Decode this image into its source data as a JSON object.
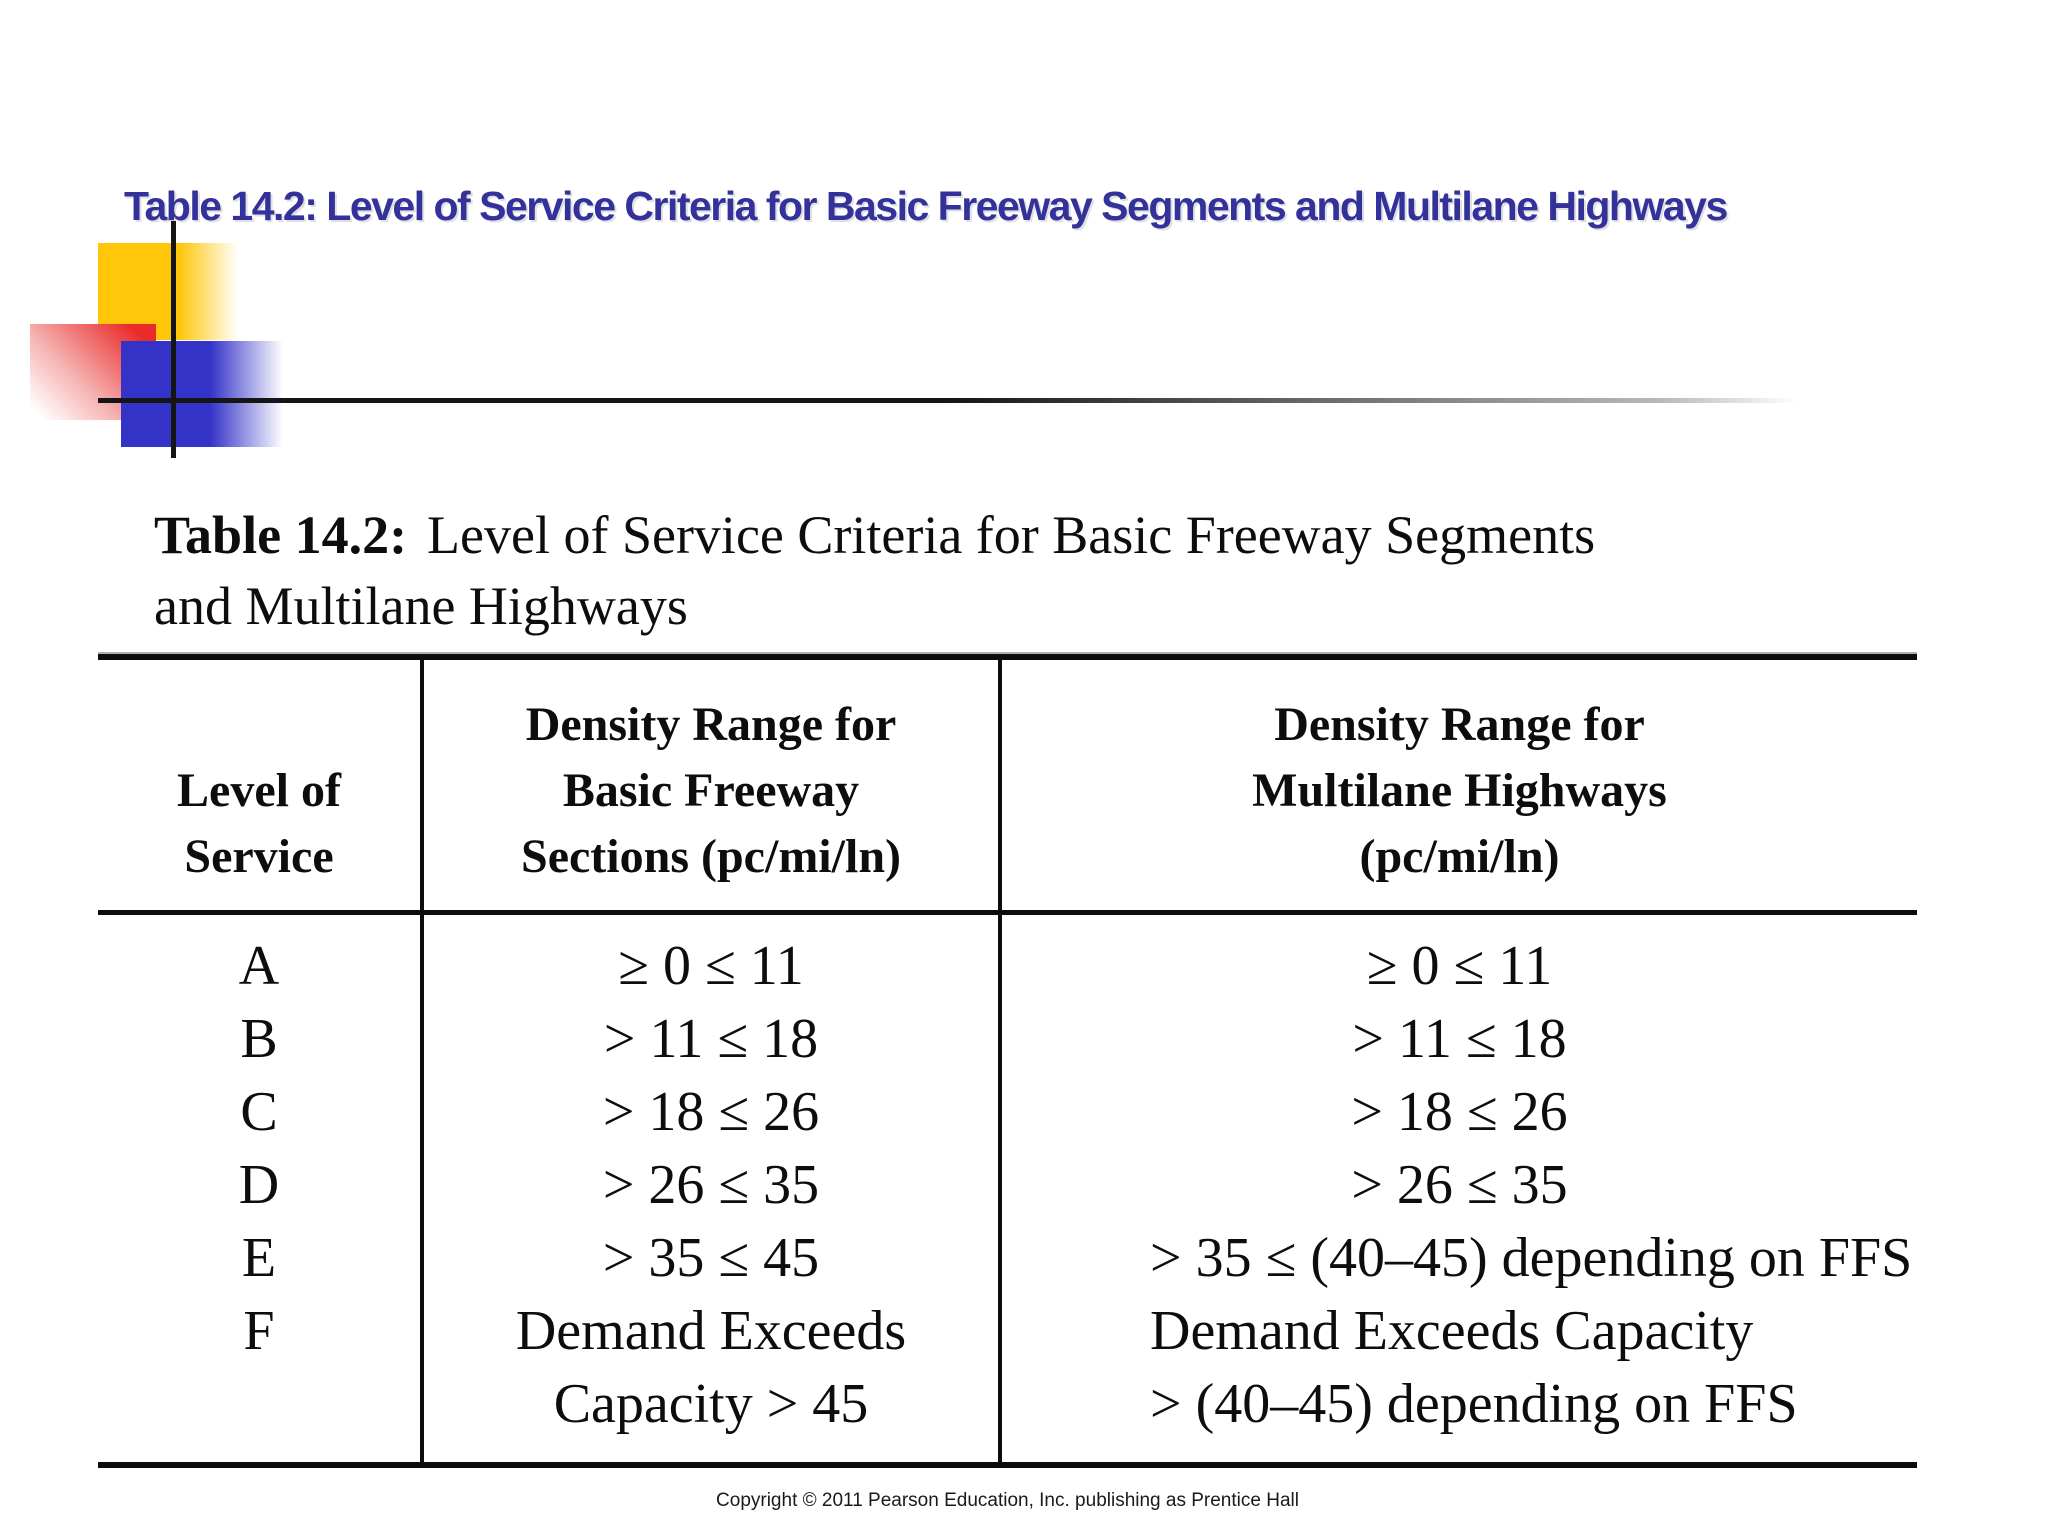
{
  "slide": {
    "title": "Table 14.2: Level of Service Criteria for Basic Freeway Segments and Multilane Highways",
    "title_color": "#32329a"
  },
  "decoration": {
    "yellow_square_color": "#ffc60a",
    "red_square_color": "#eb2a2a",
    "blue_square_color": "#3433c8",
    "line_color": "#151515"
  },
  "caption": {
    "bold": "Table 14.2:",
    "line1": "Level of Service Criteria for Basic Freeway Segments",
    "line2": "and Multilane Highways"
  },
  "table": {
    "headers": {
      "col1": [
        "Level of",
        "Service"
      ],
      "col2": [
        "Density Range for",
        "Basic Freeway",
        "Sections (pc/mi/ln)"
      ],
      "col3": [
        "Density Range for",
        "Multilane Highways",
        "(pc/mi/ln)"
      ]
    },
    "rows": [
      {
        "los": "A",
        "freeway": "≥ 0 ≤ 11",
        "multilane": "≥ 0 ≤ 11"
      },
      {
        "los": "B",
        "freeway": "> 11 ≤ 18",
        "multilane": "> 11 ≤ 18"
      },
      {
        "los": "C",
        "freeway": "> 18 ≤ 26",
        "multilane": "> 18 ≤ 26"
      },
      {
        "los": "D",
        "freeway": "> 26 ≤ 35",
        "multilane": "> 26 ≤ 35"
      },
      {
        "los": "E",
        "freeway": "> 35 ≤ 45",
        "multilane": "> 35 ≤ (40–45) depending on FFS"
      },
      {
        "los": "F",
        "freeway": "Demand Exceeds",
        "freeway2": "Capacity > 45",
        "multilane": "Demand Exceeds Capacity",
        "multilane2": "> (40–45) depending on FFS"
      }
    ]
  },
  "footer": {
    "copyright": "Copyright © 2011 Pearson Education, Inc. publishing as Prentice Hall"
  }
}
